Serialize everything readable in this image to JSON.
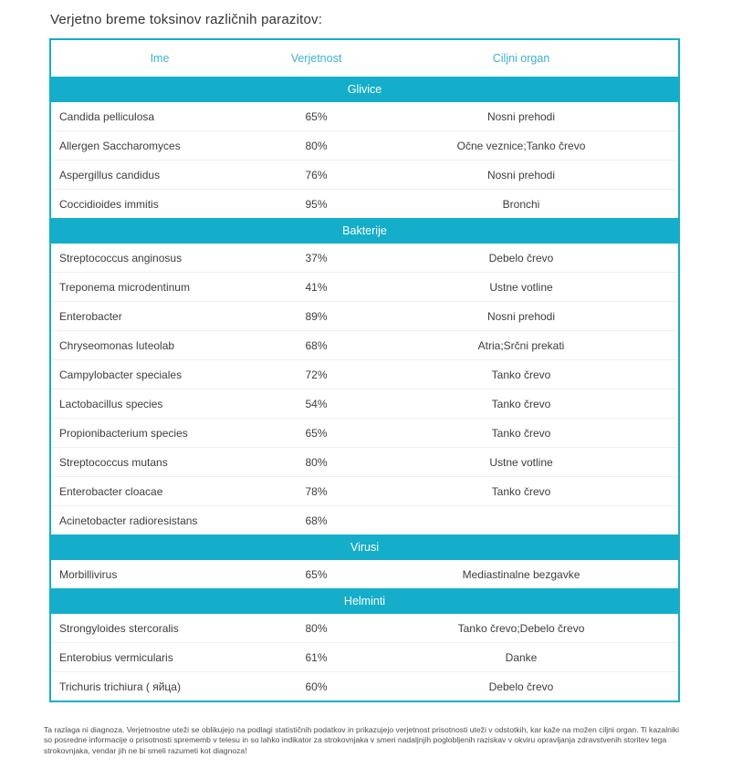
{
  "title": "Verjetno breme toksinov različnih parazitov:",
  "colors": {
    "accent": "#14aeca",
    "band_text": "#ffffff",
    "header_text": "#3ab2d1",
    "row_text": "#3d3d3d",
    "title_text": "#333333",
    "footer_text": "#4d4d4d",
    "row_separator": "#efefef"
  },
  "table": {
    "columns": [
      "Ime",
      "Verjetnost",
      "Ciljni organ"
    ],
    "sections": [
      {
        "name": "Glivice",
        "rows": [
          {
            "name": "Candida pelliculosa",
            "probability": "65%",
            "target": "Nosni prehodi"
          },
          {
            "name": "Allergen Saccharomyces",
            "probability": "80%",
            "target": "Očne veznice;Tanko črevo"
          },
          {
            "name": "Aspergillus candidus",
            "probability": "76%",
            "target": "Nosni prehodi"
          },
          {
            "name": "Coccidioides immitis",
            "probability": "95%",
            "target": "Bronchi"
          }
        ]
      },
      {
        "name": "Bakterije",
        "rows": [
          {
            "name": "Streptococcus anginosus",
            "probability": "37%",
            "target": "Debelo črevo"
          },
          {
            "name": "Treponema microdentinum",
            "probability": "41%",
            "target": "Ustne votline"
          },
          {
            "name": "Enterobacter",
            "probability": "89%",
            "target": "Nosni prehodi"
          },
          {
            "name": "Chryseomonas luteolab",
            "probability": "68%",
            "target": "Atria;Srčni prekati"
          },
          {
            "name": "Campylobacter speciales",
            "probability": "72%",
            "target": "Tanko črevo"
          },
          {
            "name": "Lactobacillus species",
            "probability": "54%",
            "target": "Tanko črevo"
          },
          {
            "name": "Propionibacterium species",
            "probability": "65%",
            "target": "Tanko črevo"
          },
          {
            "name": "Streptococcus mutans",
            "probability": "80%",
            "target": "Ustne votline"
          },
          {
            "name": "Enterobacter cloacae",
            "probability": "78%",
            "target": "Tanko črevo"
          },
          {
            "name": "Acinetobacter radioresistans",
            "probability": "68%",
            "target": ""
          }
        ]
      },
      {
        "name": "Virusi",
        "rows": [
          {
            "name": "Morbillivirus",
            "probability": "65%",
            "target": "Mediastinalne bezgavke"
          }
        ]
      },
      {
        "name": "Helminti",
        "rows": [
          {
            "name": "Strongyloides stercoralis",
            "probability": "80%",
            "target": "Tanko črevo;Debelo črevo"
          },
          {
            "name": "Enterobius vermicularis",
            "probability": "61%",
            "target": "Danke"
          },
          {
            "name": "Trichuris trichiura ( яйца)",
            "probability": "60%",
            "target": "Debelo črevo"
          }
        ]
      }
    ]
  },
  "footer": "Ta razlaga ni diagnoza. Verjetnostne uteži se oblikujejo na podlagi statističnih podatkov in prikazujejo verjetnost prisotnosti uteži v odstotkih, kar kaže na možen ciljni organ. Ti kazalniki so posredne informacije o prisotnosti sprememb v telesu in so lahko indikator za strokovnjaka v smeri nadaljnjih poglobljenih raziskav v okviru opravljanja zdravstvenih storitev tega strokovnjaka, vendar jih ne bi smeli razumeti kot diagnoza!"
}
